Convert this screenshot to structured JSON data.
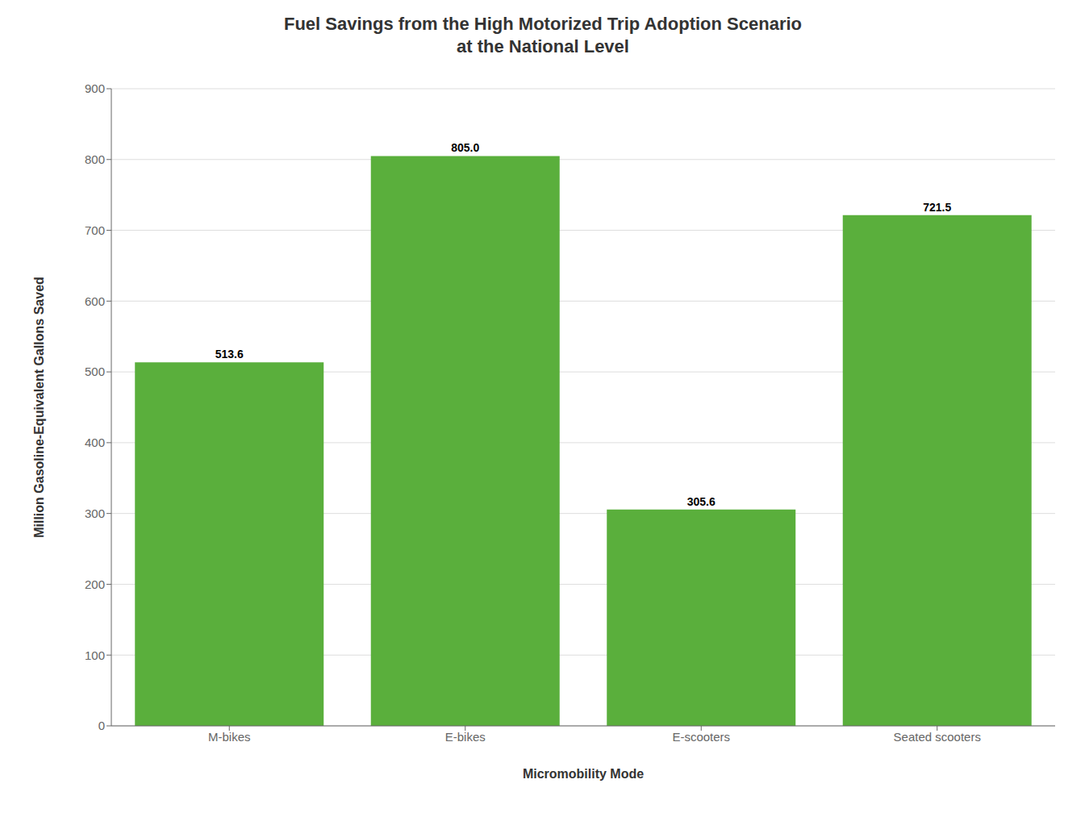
{
  "chart_data": {
    "type": "bar",
    "title": "Fuel Savings from the High Motorized Trip Adoption Scenario\nat the National Level",
    "categories": [
      "M-bikes",
      "E-bikes",
      "E-scooters",
      "Seated scooters"
    ],
    "values": [
      513.6,
      805.0,
      305.6,
      721.5
    ],
    "value_labels": [
      "513.6",
      "805.0",
      "305.6",
      "721.5"
    ],
    "color": "#5aaf3c",
    "xlabel": "Micromobility Mode",
    "ylabel": "Million Gasoline-Equivalent Gallons Saved",
    "ylim": [
      0,
      900
    ],
    "yticks": [
      0,
      100,
      200,
      300,
      400,
      500,
      600,
      700,
      800,
      900
    ],
    "grid": true,
    "data_labels": true
  }
}
